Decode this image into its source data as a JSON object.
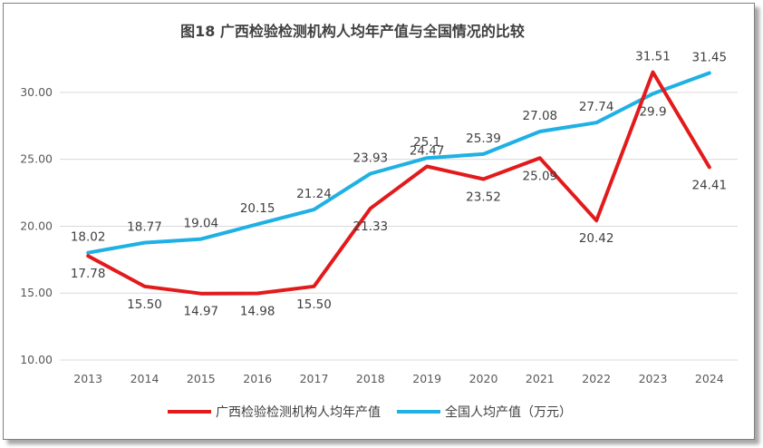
{
  "chart_data": {
    "type": "line",
    "title": "图18  广西检验检测机构人均年产值与全国情况的比较",
    "categories": [
      "2013",
      "2014",
      "2015",
      "2016",
      "2017",
      "2018",
      "2019",
      "2020",
      "2021",
      "2022",
      "2023",
      "2024"
    ],
    "ylim": [
      10,
      32.5
    ],
    "yticks": [
      "10.00",
      "15.00",
      "20.00",
      "25.00",
      "30.00"
    ],
    "grid": true,
    "legend_position": "bottom",
    "series": [
      {
        "name": "广西检验检测机构人均年产值",
        "color": "#e31a1c",
        "values": [
          17.78,
          15.5,
          14.97,
          14.98,
          15.5,
          21.33,
          24.47,
          23.52,
          25.09,
          20.42,
          31.51,
          24.41
        ],
        "labels": [
          "17.78",
          "15.50",
          "14.97",
          "14.98",
          "15.50",
          "21.33",
          "24.47",
          "23.52",
          "25.09",
          "20.42",
          "31.51",
          "24.41"
        ]
      },
      {
        "name": "全国人均产值（万元）",
        "color": "#1fb0e4",
        "values": [
          18.02,
          18.77,
          19.04,
          20.15,
          21.24,
          23.93,
          25.1,
          25.39,
          27.08,
          27.74,
          29.9,
          31.45
        ],
        "labels": [
          "18.02",
          "18.77",
          "19.04",
          "20.15",
          "21.24",
          "23.93",
          "25.1",
          "25.39",
          "27.08",
          "27.74",
          "29.9",
          "31.45"
        ]
      }
    ]
  }
}
